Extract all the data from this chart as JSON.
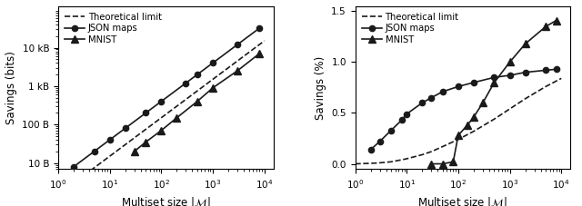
{
  "left": {
    "ylabel": "Savings (bits)",
    "xlabel": "Multiset size $|\\mathcal{M}|$",
    "ylim_log": [
      7,
      120000
    ],
    "xlim": [
      1,
      15000
    ],
    "yticks": [
      10,
      100,
      1000,
      10000
    ],
    "ytick_labels": [
      "10 B",
      "100 B",
      "1 kB",
      "10 kB"
    ],
    "theoretical_x": [
      1,
      2,
      5,
      10,
      30,
      100,
      300,
      1000,
      3000,
      10000
    ],
    "theoretical_y": [
      1.5,
      3,
      7.5,
      15,
      45,
      150,
      450,
      1500,
      4500,
      15000
    ],
    "json_x": [
      2,
      5,
      10,
      20,
      50,
      100,
      300,
      500,
      1000,
      3000,
      8000
    ],
    "json_y": [
      8,
      20,
      40,
      80,
      200,
      400,
      1200,
      2000,
      4000,
      12000,
      32000
    ],
    "mnist_x": [
      30,
      50,
      100,
      200,
      500,
      1000,
      3000,
      8000
    ],
    "mnist_y": [
      20,
      35,
      70,
      150,
      400,
      900,
      2500,
      7000
    ]
  },
  "right": {
    "ylabel": "Savings (%)",
    "xlabel": "Multiset size $|\\mathcal{M}|$",
    "ylim": [
      -0.05,
      1.55
    ],
    "xlim": [
      1,
      15000
    ],
    "yticks": [
      0.0,
      0.5,
      1.0,
      1.5
    ],
    "theoretical_x": [
      1,
      2,
      3,
      5,
      8,
      10,
      20,
      30,
      50,
      100,
      200,
      500,
      1000,
      2000,
      5000,
      10000
    ],
    "theoretical_y": [
      0.0,
      0.005,
      0.01,
      0.02,
      0.04,
      0.05,
      0.09,
      0.12,
      0.17,
      0.24,
      0.32,
      0.44,
      0.54,
      0.64,
      0.76,
      0.84
    ],
    "json_x": [
      2,
      3,
      5,
      8,
      10,
      20,
      30,
      50,
      100,
      200,
      500,
      1000,
      2000,
      5000,
      8000
    ],
    "json_y": [
      0.14,
      0.22,
      0.33,
      0.43,
      0.49,
      0.6,
      0.65,
      0.71,
      0.76,
      0.8,
      0.85,
      0.87,
      0.9,
      0.92,
      0.93
    ],
    "mnist_x": [
      30,
      50,
      80,
      100,
      150,
      200,
      300,
      500,
      1000,
      2000,
      5000,
      8000
    ],
    "mnist_y": [
      0.0,
      0.0,
      0.02,
      0.28,
      0.38,
      0.46,
      0.6,
      0.8,
      1.0,
      1.18,
      1.35,
      1.41
    ]
  },
  "line_color": "#1a1a1a",
  "marker_circle": "o",
  "marker_triangle": "^",
  "markersize": 4.5,
  "linewidth": 1.2,
  "legend_labels": [
    "Theoretical limit",
    "JSON maps",
    "MNIST"
  ]
}
